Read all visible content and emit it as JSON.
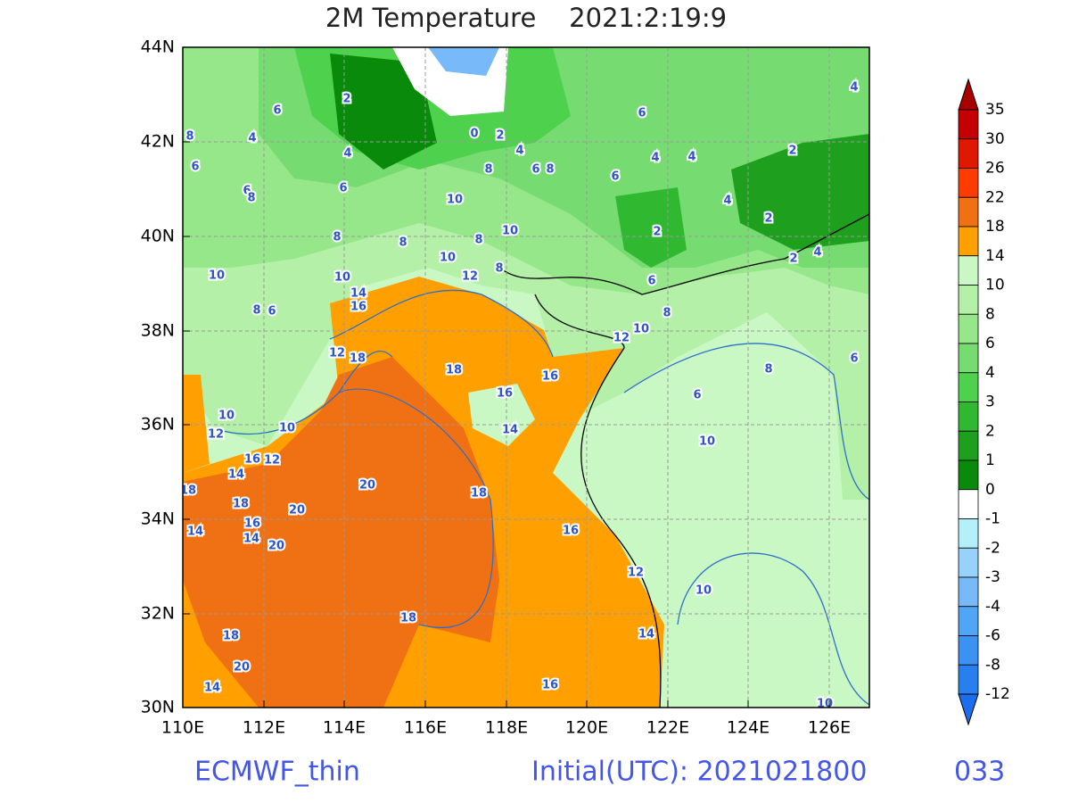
{
  "title": "2M Temperature    2021:2:19:9",
  "x_axis_labels": [
    "110E",
    "112E",
    "114E",
    "116E",
    "118E",
    "120E",
    "122E",
    "124E",
    "126E"
  ],
  "y_axis_labels": [
    "44N",
    "42N",
    "40N",
    "38N",
    "36N",
    "34N",
    "32N",
    "30N"
  ],
  "colorbar": {
    "levels": [
      35,
      30,
      26,
      22,
      18,
      14,
      10,
      8,
      6,
      4,
      3,
      2,
      1,
      0,
      -1,
      -2,
      -3,
      -4,
      -6,
      -8,
      -12
    ],
    "colors": [
      "#a80000",
      "#c40000",
      "#e01800",
      "#ff3c00",
      "#f07014",
      "#ffa000",
      "#caf8c4",
      "#b4f0a8",
      "#96e68a",
      "#76dc72",
      "#4ed24e",
      "#30b830",
      "#1ea01e",
      "#0a8a0a",
      "#ffffff",
      "#b4f0fa",
      "#96d2fa",
      "#78b9fa",
      "#50a5f5",
      "#3c92f2",
      "#2880ee",
      "#1e6eeb"
    ]
  },
  "contour_labels": [
    2,
    6,
    8,
    4,
    6,
    4,
    0,
    2,
    4,
    8,
    6,
    8,
    6,
    4,
    4,
    4,
    2,
    6,
    6,
    8,
    6,
    10,
    4,
    2,
    2,
    10,
    8,
    8,
    8,
    10,
    8,
    4,
    2,
    10,
    10,
    12,
    6,
    14,
    16,
    8,
    6,
    8,
    10,
    12,
    12,
    18,
    18,
    16,
    8,
    6,
    16,
    6,
    10,
    10,
    14,
    12,
    10,
    16,
    12,
    14,
    20,
    18,
    18,
    18,
    20,
    14,
    16,
    14,
    20,
    16,
    12,
    10,
    18,
    18,
    14,
    20,
    16,
    14,
    10
  ],
  "footer": {
    "model": "ECMWF_thin",
    "initial": "Initial(UTC): 2021021800",
    "forecast_hour": "033"
  }
}
